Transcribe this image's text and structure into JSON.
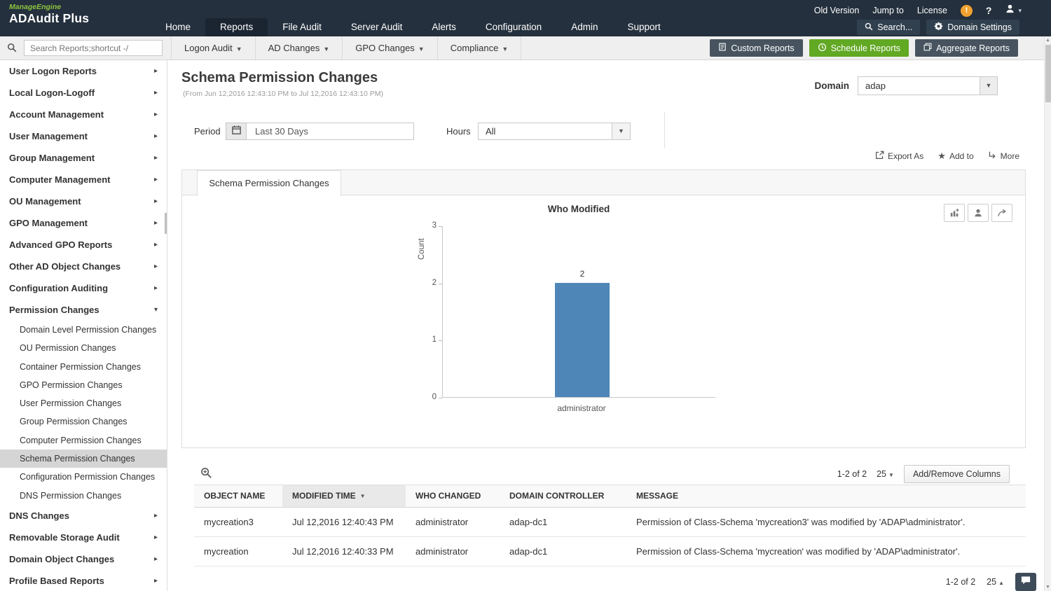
{
  "colors": {
    "header_bg": "#24303d",
    "accent_green": "#61a823",
    "bar_blue": "#4e86b8",
    "brand_green": "#8dc63f"
  },
  "header": {
    "brand_top": "ManageEngine",
    "brand_main": "ADAudit Plus",
    "links": [
      "Old Version",
      "Jump to",
      "License"
    ],
    "help": "?",
    "nav": [
      "Home",
      "Reports",
      "File Audit",
      "Server Audit",
      "Alerts",
      "Configuration",
      "Admin",
      "Support"
    ],
    "search_button": "Search...",
    "domain_settings": "Domain Settings"
  },
  "toolbar": {
    "search_placeholder": "Search Reports;shortcut -/",
    "menus": [
      "Logon Audit",
      "AD Changes",
      "GPO Changes",
      "Compliance"
    ],
    "buttons": [
      "Custom Reports",
      "Schedule Reports",
      "Aggregate Reports"
    ]
  },
  "sidebar": {
    "items_top": [
      "User Logon Reports",
      "Local Logon-Logoff",
      "Account Management",
      "User Management",
      "Group Management",
      "Computer Management",
      "OU Management",
      "GPO Management",
      "Advanced GPO Reports",
      "Other AD Object Changes",
      "Configuration Auditing",
      "Permission Changes"
    ],
    "children": [
      "Domain Level Permission Changes",
      "OU Permission Changes",
      "Container Permission Changes",
      "GPO Permission Changes",
      "User Permission Changes",
      "Group Permission Changes",
      "Computer Permission Changes",
      "Schema Permission Changes",
      "Configuration Permission Changes",
      "DNS Permission Changes"
    ],
    "items_bottom": [
      "DNS Changes",
      "Removable Storage Audit",
      "Domain Object Changes",
      "Profile Based Reports"
    ]
  },
  "main": {
    "title": "Schema Permission Changes",
    "subtitle": "(From Jun 12,2016 12:43:10 PM to Jul 12,2016 12:43:10 PM)",
    "domain_label": "Domain",
    "domain_value": "adap",
    "period_label": "Period",
    "period_value": "Last 30 Days",
    "hours_label": "Hours",
    "hours_value": "All",
    "actions": [
      "Export As",
      "Add to",
      "More"
    ],
    "tab": "Schema Permission Changes"
  },
  "chart_data": {
    "type": "bar",
    "title": "Who Modified",
    "categories": [
      "administrator"
    ],
    "values": [
      2
    ],
    "xlabel": "",
    "ylabel": "Count",
    "ylim": [
      0,
      3
    ],
    "yticks": [
      0,
      1,
      2,
      3
    ],
    "grid": false,
    "legend": false,
    "bar_color": "#4e86b8"
  },
  "table": {
    "pagination": "1-2 of 2",
    "page_size": "25",
    "add_remove_label": "Add/Remove Columns",
    "columns": [
      "OBJECT NAME",
      "MODIFIED TIME",
      "WHO CHANGED",
      "DOMAIN CONTROLLER",
      "MESSAGE"
    ],
    "rows": [
      {
        "object_name": "mycreation3",
        "modified_time": "Jul 12,2016 12:40:43 PM",
        "who_changed": "administrator",
        "domain_controller": "adap-dc1",
        "message": "Permission of Class-Schema 'mycreation3' was modified by 'ADAP\\administrator'."
      },
      {
        "object_name": "mycreation",
        "modified_time": "Jul 12,2016 12:40:33 PM",
        "who_changed": "administrator",
        "domain_controller": "adap-dc1",
        "message": "Permission of Class-Schema 'mycreation' was modified by 'ADAP\\administrator'."
      }
    ],
    "footer_pagination": "1-2 of 2",
    "footer_page_size": "25"
  }
}
